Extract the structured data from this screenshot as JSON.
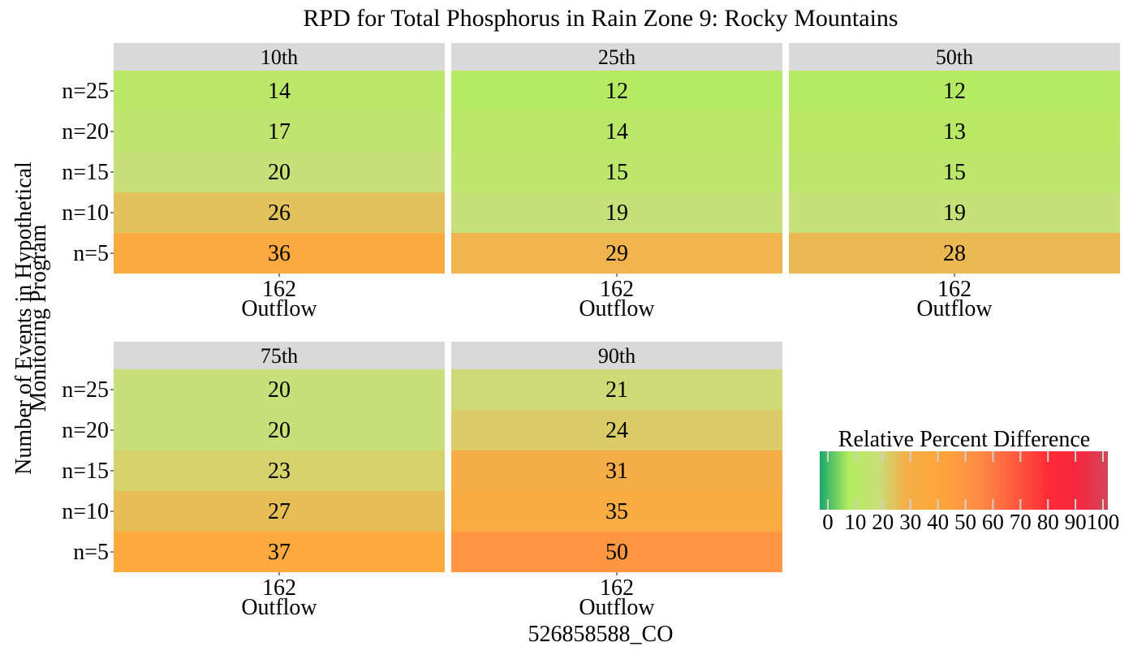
{
  "chart_data": {
    "type": "heatmap",
    "title": "RPD for Total Phosphorus in Rain Zone 9: Rocky Mountains",
    "xlabel": "526858588_CO",
    "ylabel_lines": [
      "Number of Events in Hypothetical",
      "Monitoring Program"
    ],
    "rows": [
      "n=25",
      "n=20",
      "n=15",
      "n=10",
      "n=5"
    ],
    "column_tick": "162",
    "column_sub": "Outflow",
    "panels": [
      {
        "label": "10th",
        "values": [
          14,
          17,
          20,
          26,
          36
        ]
      },
      {
        "label": "25th",
        "values": [
          12,
          14,
          15,
          19,
          29
        ]
      },
      {
        "label": "50th",
        "values": [
          12,
          13,
          15,
          19,
          28
        ]
      },
      {
        "label": "75th",
        "values": [
          20,
          20,
          23,
          27,
          37
        ]
      },
      {
        "label": "90th",
        "values": [
          21,
          24,
          31,
          35,
          50
        ]
      }
    ],
    "legend": {
      "title": "Relative Percent Difference",
      "ticks": [
        "0",
        "10",
        "20",
        "30",
        "40",
        "50",
        "60",
        "70",
        "80",
        "90",
        "100"
      ],
      "range": [
        0,
        100
      ]
    },
    "colors": {
      "strip": "#D9D9D9",
      "scale": [
        {
          "v": 0,
          "c": "#1AA86A"
        },
        {
          "v": 10,
          "c": "#B2EC5D"
        },
        {
          "v": 20,
          "c": "#C8E07A"
        },
        {
          "v": 30,
          "c": "#F4AE48"
        },
        {
          "v": 40,
          "c": "#FFA83A"
        },
        {
          "v": 55,
          "c": "#FF8E46"
        },
        {
          "v": 80,
          "c": "#FF2A36"
        },
        {
          "v": 90,
          "c": "#F42840"
        },
        {
          "v": 100,
          "c": "#D2465A"
        }
      ]
    }
  }
}
